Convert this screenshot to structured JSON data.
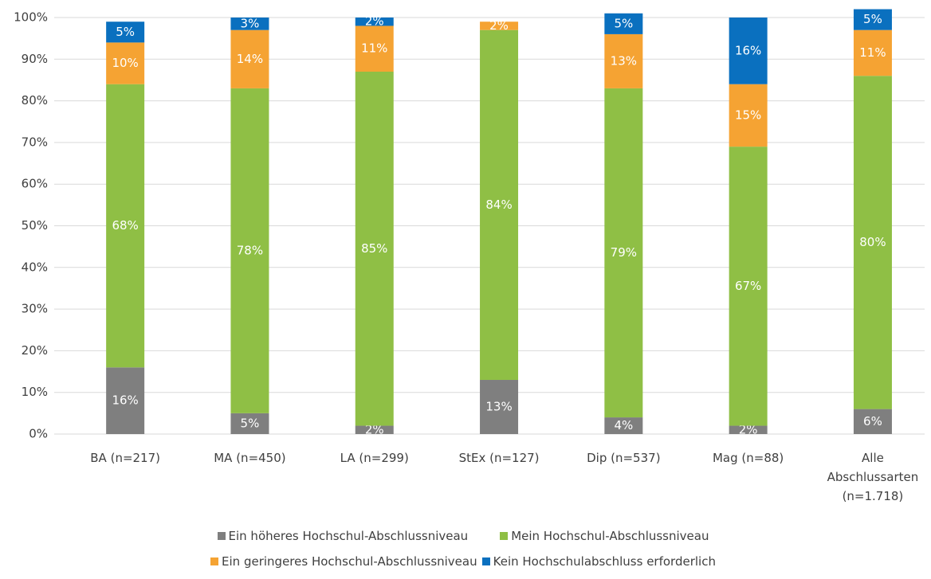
{
  "chart_data": {
    "type": "stacked_bar",
    "categories": [
      "BA (n=217)",
      "MA (n=450)",
      "LA (n=299)",
      "StEx (n=127)",
      "Dip (n=537)",
      "Mag (n=88)",
      "Alle Abschlussarten (n=1.718)"
    ],
    "series": [
      {
        "name": "Ein höheres Hochschul-Abschlussniveau",
        "color": "#7f7f7f",
        "values": [
          16,
          5,
          2,
          13,
          4,
          2,
          6
        ],
        "value_labels": [
          "16%",
          "5%",
          "2%",
          "13%",
          "4%",
          "2%",
          "6%"
        ]
      },
      {
        "name": "Mein Hochschul-Abschlussniveau",
        "color": "#8fbf45",
        "values": [
          68,
          78,
          85,
          84,
          79,
          67,
          80
        ],
        "value_labels": [
          "68%",
          "78%",
          "85%",
          "84%",
          "79%",
          "67%",
          "80%"
        ]
      },
      {
        "name": "Ein geringeres Hochschul-Abschlussniveau",
        "color": "#f5a333",
        "values": [
          10,
          14,
          11,
          2,
          13,
          15,
          11
        ],
        "value_labels": [
          "10%",
          "14%",
          "11%",
          "2%",
          "13%",
          "15%",
          "11%"
        ]
      },
      {
        "name": "Kein Hochschulabschluss erforderlich",
        "color": "#0a70bf",
        "values": [
          5,
          3,
          2,
          0,
          5,
          16,
          5
        ],
        "value_labels": [
          "5%",
          "3%",
          "2%",
          null,
          "5%",
          "16%",
          "5%"
        ]
      }
    ],
    "ylim": [
      0,
      100
    ],
    "yticks": [
      {
        "value": 0,
        "label": "0%"
      },
      {
        "value": 10,
        "label": "10%"
      },
      {
        "value": 20,
        "label": "20%"
      },
      {
        "value": 30,
        "label": "30%"
      },
      {
        "value": 40,
        "label": "40%"
      },
      {
        "value": 50,
        "label": "50%"
      },
      {
        "value": 60,
        "label": "60%"
      },
      {
        "value": 70,
        "label": "70%"
      },
      {
        "value": 80,
        "label": "80%"
      },
      {
        "value": 90,
        "label": "90%"
      },
      {
        "value": 100,
        "label": "100%"
      }
    ],
    "grid": true,
    "legend": "bottom"
  }
}
